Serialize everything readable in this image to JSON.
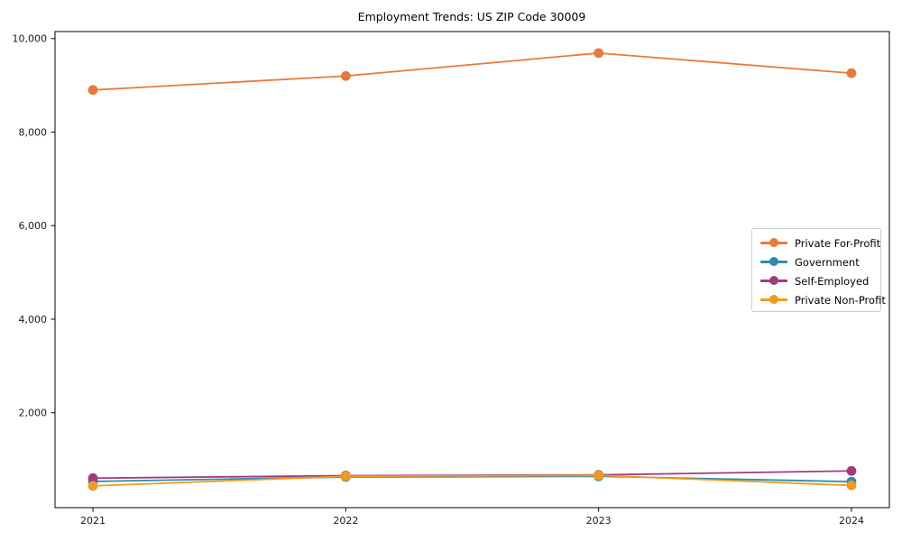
{
  "chart_data": {
    "type": "line",
    "title": "Employment Trends: US ZIP Code 30009",
    "x": [
      2021,
      2022,
      2023,
      2024
    ],
    "x_tick_labels": [
      "2021",
      "2022",
      "2023",
      "2024"
    ],
    "y_ticks": [
      2000,
      4000,
      6000,
      8000,
      10000
    ],
    "y_tick_labels": [
      "2,000",
      "4,000",
      "6,000",
      "8,000",
      "10,000"
    ],
    "xlim": [
      2020.85,
      2024.15
    ],
    "ylim": [
      -30,
      10150
    ],
    "grid": false,
    "legend_position": "center right",
    "background": "#ffffff",
    "axis_color": "#000000",
    "tick_label_color": "#1a1a1a",
    "series": [
      {
        "name": "Private For-Profit",
        "color": "#e8793a",
        "values": [
          8900,
          9200,
          9690,
          9260
        ]
      },
      {
        "name": "Government",
        "color": "#2e8bac",
        "values": [
          530,
          625,
          640,
          525
        ]
      },
      {
        "name": "Self-Employed",
        "color": "#a23a7e",
        "values": [
          600,
          655,
          670,
          755
        ]
      },
      {
        "name": "Private Non-Profit",
        "color": "#ef9b20",
        "values": [
          435,
          640,
          660,
          445
        ]
      }
    ]
  }
}
